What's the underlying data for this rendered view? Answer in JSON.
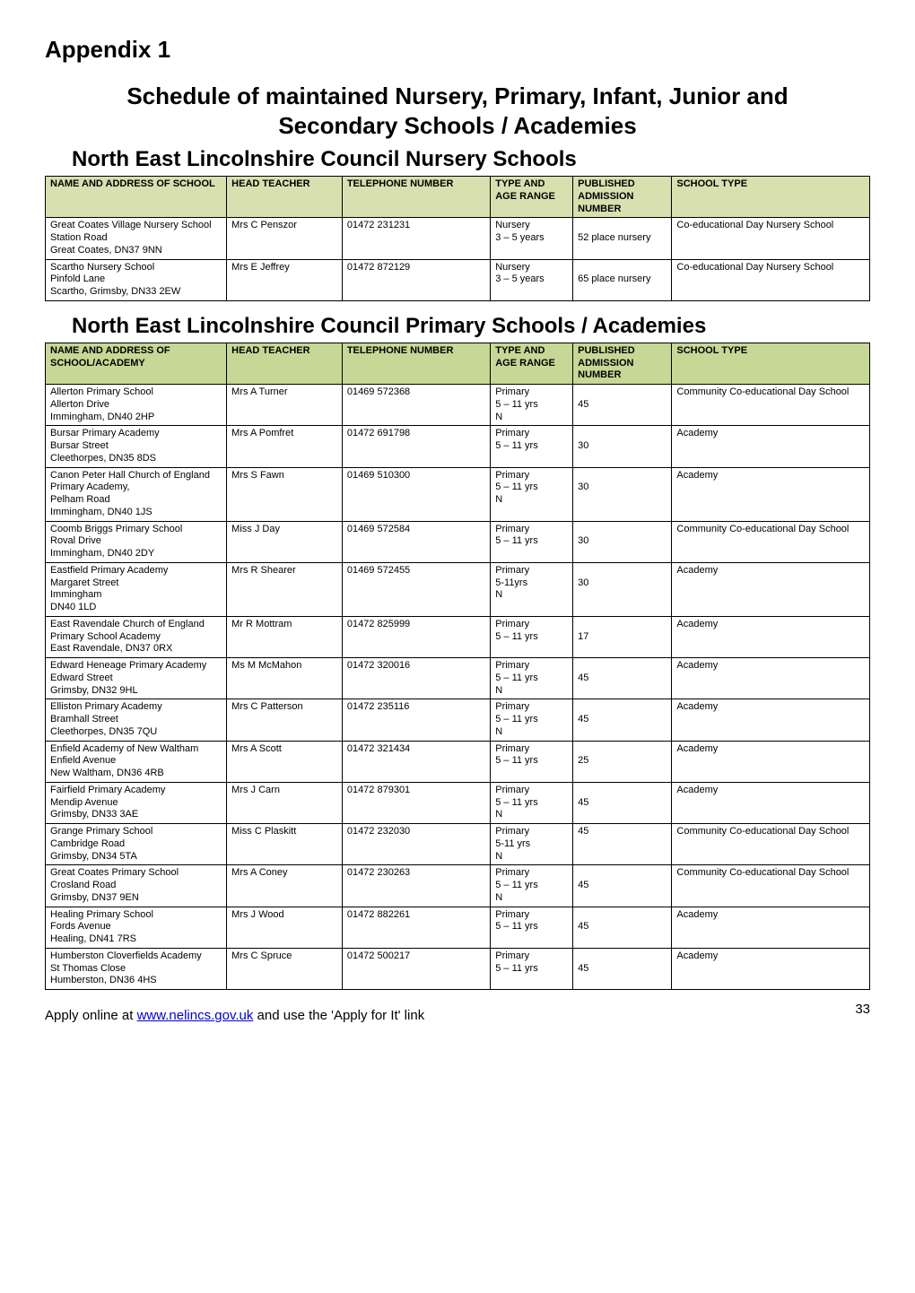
{
  "appendix": "Appendix 1",
  "mainTitle": "Schedule of maintained Nursery, Primary, Infant, Junior and Secondary Schools / Academies",
  "footerText": "Apply online at www.nelincs.gov.uk and use the 'Apply for It' link",
  "footerLink": "www.nelincs.gov.uk",
  "pageNumber": "33",
  "headers": {
    "name": "NAME AND ADDRESS OF SCHOOL",
    "nameAcademy": "NAME AND ADDRESS OF SCHOOL/ACADEMY",
    "head": "HEAD TEACHER",
    "tel": "TELEPHONE NUMBER",
    "type": "TYPE AND AGE RANGE",
    "pub": "PUBLISHED ADMISSION NUMBER",
    "schtype": "SCHOOL TYPE"
  },
  "sections": [
    {
      "title": "North East Lincolnshire Council Nursery Schools",
      "headerBg": "#d8e0b0",
      "nameHeaderKey": "name",
      "rows": [
        {
          "name": "Great Coates Village Nursery School\nStation Road\nGreat Coates, DN37 9NN",
          "head": "Mrs C Penszor",
          "tel": "01472 231231",
          "type": "Nursery\n3 – 5 years",
          "pub": "\n52 place nursery",
          "schtype": "Co-educational Day Nursery School"
        },
        {
          "name": "Scartho Nursery School\nPinfold Lane\nScartho, Grimsby, DN33 2EW",
          "head": "Mrs E Jeffrey",
          "tel": "01472 872129",
          "type": "Nursery\n3 – 5 years",
          "pub": "\n65 place nursery",
          "schtype": "Co-educational Day Nursery School"
        }
      ]
    },
    {
      "title": "North East Lincolnshire Council Primary Schools / Academies",
      "headerBg": "#c7d796",
      "nameHeaderKey": "nameAcademy",
      "rows": [
        {
          "name": "Allerton Primary School\nAllerton Drive\nImmingham, DN40 2HP",
          "head": "Mrs A Turner",
          "tel": "01469 572368",
          "type": "Primary\n5 – 11 yrs\nN",
          "pub": "\n45",
          "schtype": "Community Co-educational Day School"
        },
        {
          "name": "Bursar Primary Academy\nBursar Street\nCleethorpes, DN35 8DS",
          "head": "Mrs A Pomfret",
          "tel": "01472 691798",
          "type": "Primary\n5 – 11 yrs",
          "pub": "\n30",
          "schtype": "Academy"
        },
        {
          "name": "Canon Peter Hall Church of England Primary Academy,\nPelham Road\nImmingham, DN40 1JS",
          "head": "Mrs S Fawn",
          "tel": "01469 510300",
          "type": "Primary\n5 – 11 yrs\nN",
          "pub": "\n30",
          "schtype": "Academy"
        },
        {
          "name": "Coomb Briggs Primary School\nRoval Drive\nImmingham, DN40 2DY",
          "head": "Miss J Day",
          "tel": "01469 572584",
          "type": "Primary\n5 – 11 yrs",
          "pub": "\n30",
          "schtype": "Community Co-educational Day School"
        },
        {
          "name": "Eastfield Primary Academy\nMargaret Street\nImmingham\nDN40 1LD",
          "head": "Mrs R Shearer",
          "tel": "01469 572455",
          "type": "Primary\n5-11yrs\nN",
          "pub": "\n30",
          "schtype": "Academy"
        },
        {
          "name": "East Ravendale Church of England Primary School Academy\nEast Ravendale, DN37 0RX",
          "head": "Mr R Mottram",
          "tel": "01472 825999",
          "type": "Primary\n5 – 11 yrs",
          "pub": "\n17",
          "schtype": "Academy"
        },
        {
          "name": "Edward Heneage Primary Academy\nEdward Street\nGrimsby, DN32 9HL",
          "head": "Ms M McMahon",
          "tel": "01472 320016",
          "type": "Primary\n5 – 11 yrs\nN",
          "pub": "\n45",
          "schtype": "Academy"
        },
        {
          "name": "Elliston Primary Academy\nBramhall Street\nCleethorpes, DN35 7QU",
          "head": "Mrs C Patterson",
          "tel": "01472 235116",
          "type": "Primary\n5 – 11 yrs\nN",
          "pub": "\n45",
          "schtype": "Academy"
        },
        {
          "name": "Enfield Academy of New Waltham\nEnfield Avenue\nNew Waltham, DN36 4RB",
          "head": "Mrs A Scott",
          "tel": "01472 321434",
          "type": "Primary\n5 – 11 yrs",
          "pub": "\n25",
          "schtype": "Academy"
        },
        {
          "name": "Fairfield Primary Academy\nMendip Avenue\nGrimsby, DN33 3AE",
          "head": "Mrs J Carn",
          "tel": "01472 879301",
          "type": "Primary\n5 – 11 yrs\nN",
          "pub": "\n45",
          "schtype": "Academy"
        },
        {
          "name": "Grange Primary School\nCambridge Road\nGrimsby, DN34 5TA",
          "head": "Miss C Plaskitt",
          "tel": "01472 232030",
          "type": "Primary\n5-11 yrs\nN",
          "pub": "45",
          "schtype": "Community Co-educational Day School"
        },
        {
          "name": "Great Coates Primary School\nCrosland Road\nGrimsby, DN37 9EN",
          "head": "Mrs A Coney",
          "tel": "01472 230263",
          "type": "Primary\n5 – 11 yrs\nN",
          "pub": "\n45",
          "schtype": "Community Co-educational Day School"
        },
        {
          "name": "Healing Primary School\nFords Avenue\nHealing, DN41 7RS",
          "head": "Mrs J Wood",
          "tel": "01472 882261",
          "type": "Primary\n5 – 11 yrs",
          "pub": "\n45",
          "schtype": "Academy"
        },
        {
          "name": "Humberston Cloverfields Academy\nSt Thomas Close\nHumberston, DN36 4HS",
          "head": "Mrs C Spruce",
          "tel": "01472 500217",
          "type": "Primary\n5 – 11 yrs",
          "pub": "\n45",
          "schtype": "Academy"
        }
      ]
    }
  ]
}
